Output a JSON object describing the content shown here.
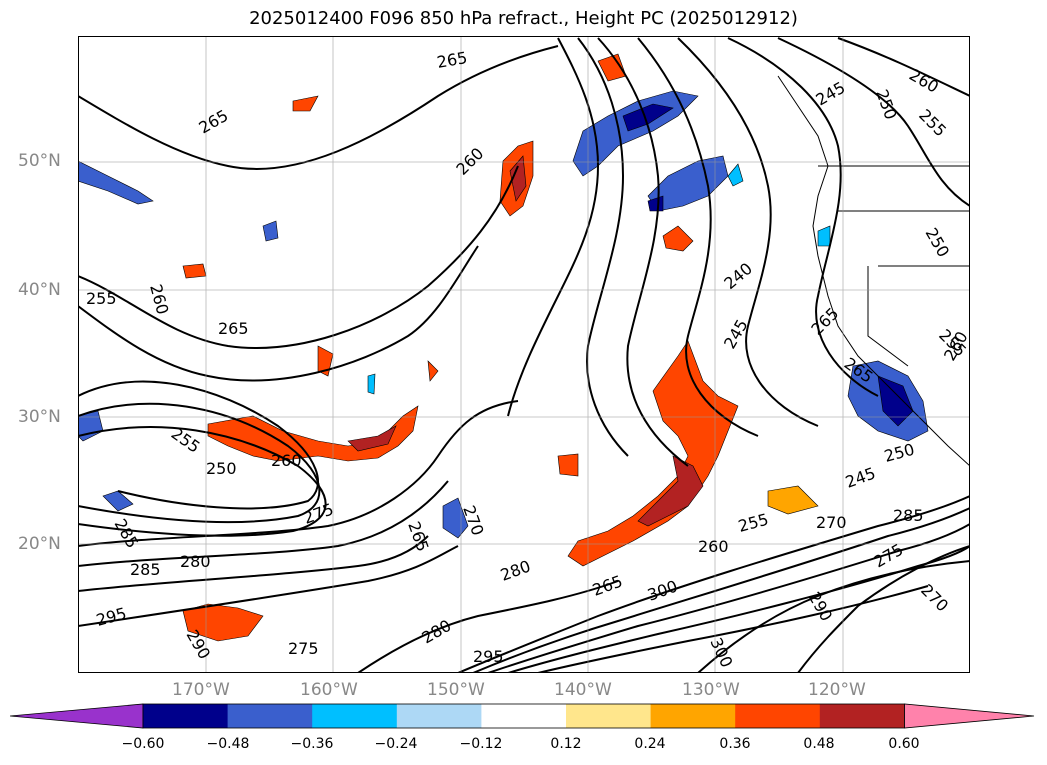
{
  "title": "2025012400 F096 850 hPa refract., Height PC (2025012912)",
  "lat_labels": [
    "50°N",
    "40°N",
    "30°N",
    "20°N"
  ],
  "lon_labels": [
    "170°W",
    "160°W",
    "150°W",
    "140°W",
    "130°W",
    "120°W"
  ],
  "contour_labels": [
    "265",
    "265",
    "260",
    "260",
    "255",
    "265",
    "255",
    "250",
    "260",
    "275",
    "285",
    "285",
    "280",
    "265",
    "270",
    "280",
    "265",
    "295",
    "290",
    "275",
    "280",
    "295",
    "300",
    "300",
    "260",
    "255",
    "270",
    "285",
    "275",
    "290",
    "270",
    "245",
    "250",
    "240",
    "245",
    "250",
    "255",
    "260",
    "265",
    "245",
    "250",
    "255",
    "260",
    "265"
  ],
  "colorbar": {
    "ticks": [
      "−0.60",
      "−0.48",
      "−0.36",
      "−0.24",
      "−0.12",
      "0.12",
      "0.24",
      "0.36",
      "0.48",
      "0.60"
    ],
    "colors": [
      "#9932cc",
      "#00008b",
      "#3a5fcd",
      "#00bfff",
      "#add8f5",
      "#ffffff",
      "#ffe68c",
      "#ffa500",
      "#ff4500",
      "#b22222",
      "#ff82ab"
    ]
  }
}
